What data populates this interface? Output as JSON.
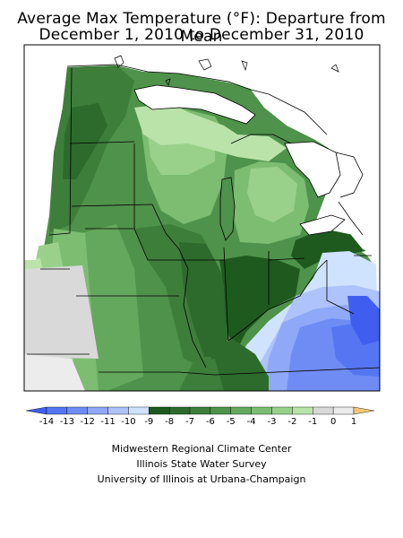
{
  "title": "Average Max Temperature (°F): Departure from Mean",
  "subtitle": "December 1, 2010 to December 31, 2010",
  "legend": {
    "tick_labels": [
      "-14",
      "-13",
      "-12",
      "-11",
      "-10",
      "-9",
      "-8",
      "-7",
      "-6",
      "-5",
      "-4",
      "-3",
      "-2",
      "-1",
      "0",
      "1"
    ],
    "bins": [
      {
        "range": "< -14",
        "color": "#3f5ef0"
      },
      {
        "range": "-14 to -13",
        "color": "#5575f2"
      },
      {
        "range": "-13 to -12",
        "color": "#6f8cf5"
      },
      {
        "range": "-12 to -11",
        "color": "#8fa8f8"
      },
      {
        "range": "-11 to -10",
        "color": "#aec2fb"
      },
      {
        "range": "-10 to -9",
        "color": "#cfe3ff"
      },
      {
        "range": "-9 to -8",
        "color": "#1e5a1e"
      },
      {
        "range": "-8 to -7",
        "color": "#2c6b2c"
      },
      {
        "range": "-7 to -6",
        "color": "#3d7e3a"
      },
      {
        "range": "-6 to -5",
        "color": "#4f924b"
      },
      {
        "range": "-5 to -4",
        "color": "#64a85e"
      },
      {
        "range": "-4 to -3",
        "color": "#7cbd72"
      },
      {
        "range": "-3 to -2",
        "color": "#99d18b"
      },
      {
        "range": "-2 to -1",
        "color": "#b9e3a9"
      },
      {
        "range": "-1 to 0",
        "color": "#d9d9d9"
      },
      {
        "range": "0 to 1",
        "color": "#ececec"
      },
      {
        "range": "> 1",
        "color": "#f2c878"
      }
    ]
  },
  "credits": [
    "Midwestern Regional Climate Center",
    "Illinois State Water Survey",
    "University of Illinois at Urbana-Champaign"
  ]
}
